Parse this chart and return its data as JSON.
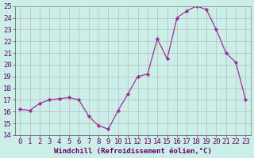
{
  "x": [
    0,
    1,
    2,
    3,
    4,
    5,
    6,
    7,
    8,
    9,
    10,
    11,
    12,
    13,
    14,
    15,
    16,
    17,
    18,
    19,
    20,
    21,
    22,
    23
  ],
  "y": [
    16.2,
    16.1,
    16.7,
    17.0,
    17.1,
    17.2,
    17.0,
    15.6,
    14.8,
    14.5,
    16.1,
    17.5,
    19.0,
    19.2,
    22.2,
    20.5,
    24.0,
    24.6,
    25.0,
    24.7,
    23.0,
    21.0,
    20.2,
    17.0
  ],
  "line_color": "#993399",
  "marker_color": "#993399",
  "bg_color": "#cceee8",
  "grid_color": "#bbbbbb",
  "xlabel": "Windchill (Refroidissement éolien,°C)",
  "ylim": [
    14,
    25
  ],
  "xlim_min": -0.5,
  "xlim_max": 23.5,
  "yticks": [
    14,
    15,
    16,
    17,
    18,
    19,
    20,
    21,
    22,
    23,
    24,
    25
  ],
  "xticks": [
    0,
    1,
    2,
    3,
    4,
    5,
    6,
    7,
    8,
    9,
    10,
    11,
    12,
    13,
    14,
    15,
    16,
    17,
    18,
    19,
    20,
    21,
    22,
    23
  ],
  "tick_fontsize": 6.5,
  "xlabel_fontsize": 6.5
}
